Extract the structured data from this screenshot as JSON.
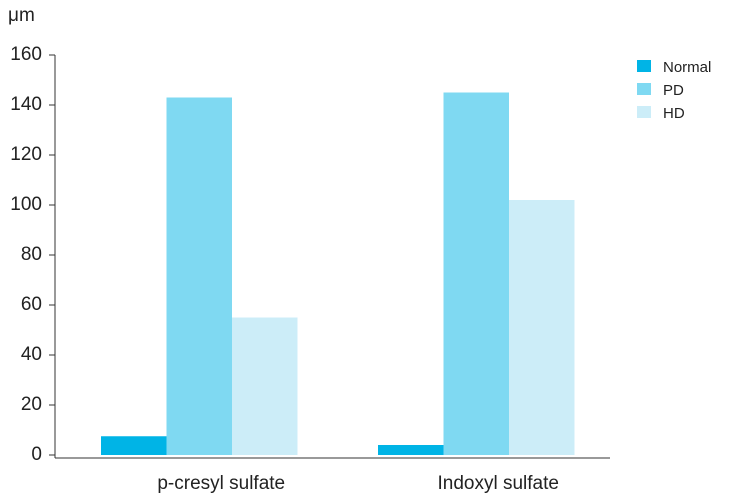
{
  "chart_data": {
    "type": "bar",
    "y_label": "μm",
    "categories": [
      "p-cresyl sulfate",
      "Indoxyl sulfate"
    ],
    "series": [
      {
        "name": "Normal",
        "color": "#00b4e6",
        "values": [
          7.5,
          4
        ]
      },
      {
        "name": "PD",
        "color": "#7fd9f2",
        "values": [
          143,
          145
        ]
      },
      {
        "name": "HD",
        "color": "#ccedf8",
        "values": [
          55,
          102
        ]
      }
    ],
    "ylim": [
      0,
      160
    ],
    "yticks": [
      0,
      20,
      40,
      60,
      80,
      100,
      120,
      140,
      160
    ],
    "grid": false,
    "legend": "top-right"
  }
}
